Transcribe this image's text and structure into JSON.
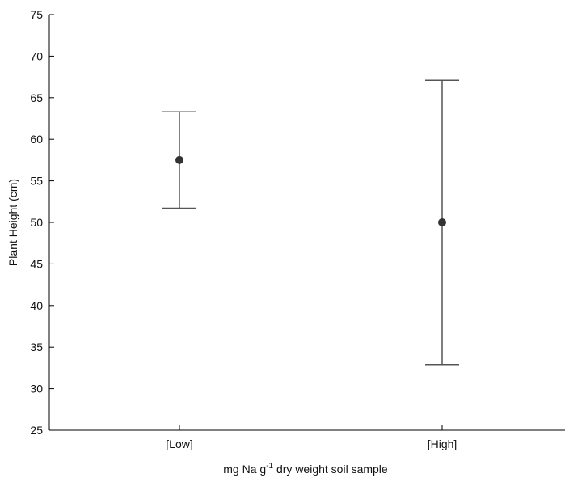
{
  "chart_data": {
    "type": "scatter",
    "title": "",
    "categories": [
      "[Low]",
      "[High]"
    ],
    "values": [
      57.5,
      50.0
    ],
    "error_low": [
      51.7,
      32.9
    ],
    "error_high": [
      63.3,
      67.1
    ],
    "ylabel": "Plant Height (cm)",
    "xlabel": {
      "before": "mg Na g",
      "superscript": "-1",
      "after": " dry weight soil sample"
    },
    "ylim": [
      25,
      75
    ],
    "yticks": [
      25,
      30,
      35,
      40,
      45,
      50,
      55,
      60,
      65,
      70,
      75
    ],
    "grid": false,
    "marker_color": "#333333",
    "errorbar_color": "#555555"
  }
}
